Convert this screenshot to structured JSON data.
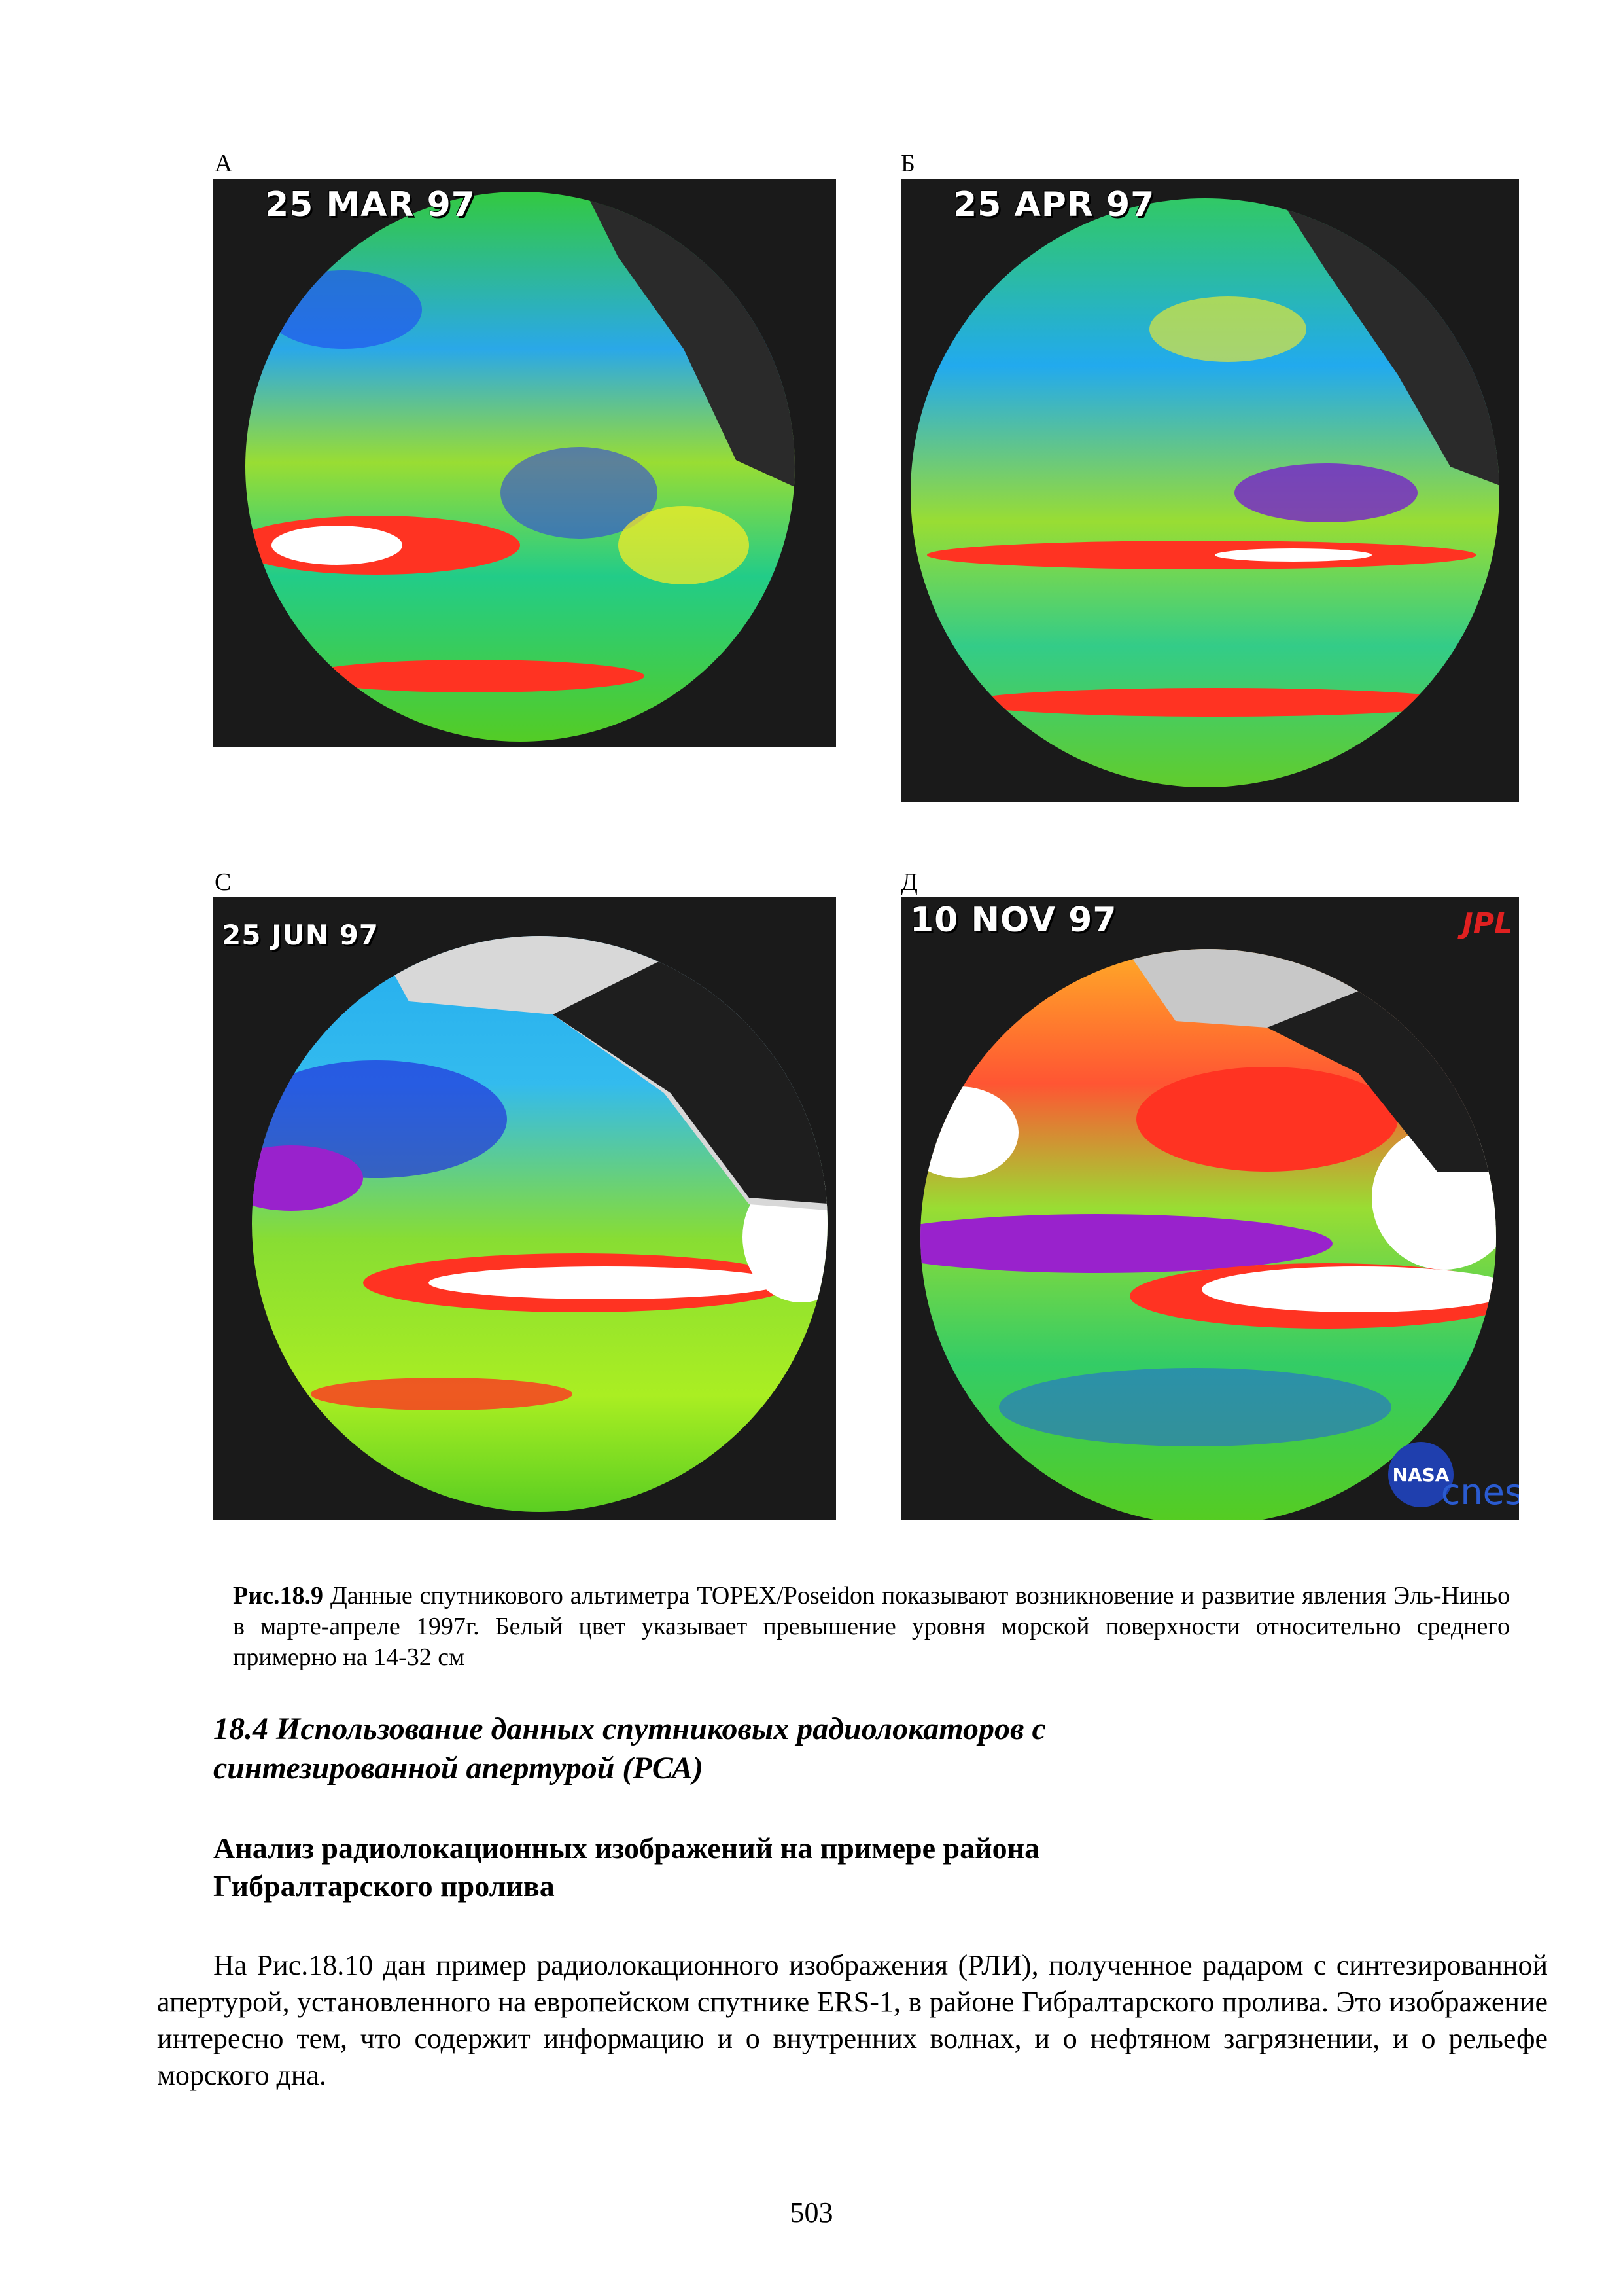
{
  "figure": {
    "panels": [
      {
        "id": "A",
        "letter": "А",
        "date": "25 MAR 97"
      },
      {
        "id": "B",
        "letter": "Б",
        "date": "25 APR 97"
      },
      {
        "id": "C",
        "letter": "С",
        "date": "25 JUN 97"
      },
      {
        "id": "D",
        "letter": "Д",
        "date": "10 NOV 97",
        "logo_jpl": "JPL",
        "logo_nasa": "NASA",
        "logo_cnes": "cnes"
      }
    ],
    "caption_label": "Рис.18.9",
    "caption_text": " Данные спутникового альтиметра TOPEX/Poseidon показывают возникновение и развитие явления Эль-Ниньо в марте-апреле 1997г. Белый цвет указывает превышение уровня морской поверхности относительно среднего примерно на 14-32 см"
  },
  "section": {
    "line1": "18.4 Использование данных спутниковых радиолокаторов с",
    "line2": "синтезированной апертурой (РСА)"
  },
  "subsection": {
    "line1": "Анализ радиолокационных изображений на примере района",
    "line2": "Гибралтарского пролива"
  },
  "body": "На Рис.18.10 дан пример радиолокационного изображения (РЛИ), полученное радаром с синтезированной апертурой, установленного на европейском спутнике ERS-1, в районе Гибралтарского пролива. Это изображение интересно тем, что содержит информацию и о внутренних волнах, и о нефтяном загрязнении, и о рельефе морского дна.",
  "page_number": "503"
}
